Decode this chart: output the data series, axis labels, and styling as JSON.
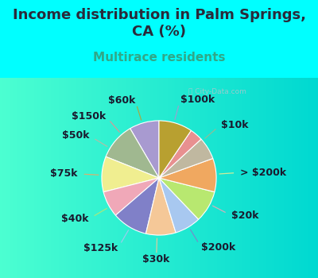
{
  "title": "Income distribution in Palm Springs,\nCA (%)",
  "subtitle": "Multirace residents",
  "watermark": "ⓘ City-Data.com",
  "labels": [
    "$100k",
    "$10k",
    "> $200k",
    "$20k",
    "$200k",
    "$30k",
    "$125k",
    "$40k",
    "$75k",
    "$50k",
    "$150k",
    "$60k"
  ],
  "sizes": [
    8.0,
    10.0,
    9.5,
    7.0,
    9.5,
    8.0,
    7.0,
    8.5,
    9.0,
    6.0,
    3.5,
    9.0
  ],
  "colors": [
    "#a89ad0",
    "#a0b890",
    "#f0ee90",
    "#f0a8b8",
    "#8080c8",
    "#f5c898",
    "#a8c8f0",
    "#b8e870",
    "#f0a860",
    "#c0b8a0",
    "#e89090",
    "#b8a030"
  ],
  "bg_color": "#00ffff",
  "chart_bg_left": "#c8eedd",
  "chart_bg_right": "#e8f8f0",
  "title_color": "#2a2a3a",
  "subtitle_color": "#30a888",
  "watermark_color": "#aac8cc",
  "title_fontsize": 13,
  "subtitle_fontsize": 11,
  "label_fontsize": 9,
  "startangle": 90
}
